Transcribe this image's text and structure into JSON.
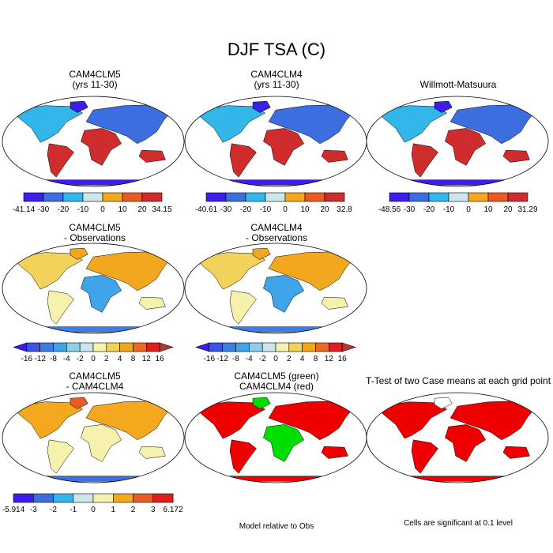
{
  "main_title": "DJF TSA (C)",
  "panels": [
    {
      "title_line1": "CAM4CLM5",
      "title_line2": "(yrs 11-30)",
      "kind": "temperature"
    },
    {
      "title_line1": "CAM4CLM4",
      "title_line2": "(yrs 11-30)",
      "kind": "temperature"
    },
    {
      "title_line1": "Willmott-Matsuura",
      "title_line2": "",
      "kind": "temperature"
    },
    {
      "title_line1": "CAM4CLM5",
      "title_line2": "- Observations",
      "kind": "difference"
    },
    {
      "title_line1": "CAM4CLM4",
      "title_line2": "- Observations",
      "kind": "difference"
    },
    {
      "title_line1": "CAM4CLM5",
      "title_line2": "- CAM4CLM4",
      "kind": "difference"
    },
    {
      "title_line1": "CAM4CLM5 (green)",
      "title_line2": "CAM4CLM4 (red)",
      "kind": "comparison"
    },
    {
      "title_line1": "T-Test of two Case means at each grid point",
      "title_line2": "",
      "kind": "significance"
    }
  ],
  "notes": {
    "model_relative": "Model relative to Obs",
    "significance": "Cells are significant at 0.1 level"
  },
  "chart_data": [
    {
      "type": "heatmap",
      "title": "CAM4CLM5 (yrs 11-30)",
      "colorbar": {
        "labels": [
          "-41.14",
          "-30",
          "-20",
          "-10",
          "0",
          "10",
          "20",
          "34.15"
        ],
        "min": -41.14,
        "max": 34.15,
        "colors": [
          "#3b1ee8",
          "#3d6ee0",
          "#33b6ea",
          "#cde6ee",
          "#f4a81e",
          "#eb5a24",
          "#cf2d2d"
        ]
      }
    },
    {
      "type": "heatmap",
      "title": "CAM4CLM4 (yrs 11-30)",
      "colorbar": {
        "labels": [
          "-40.61",
          "-30",
          "-20",
          "-10",
          "0",
          "10",
          "20",
          "32.8"
        ],
        "min": -40.61,
        "max": 32.8,
        "colors": [
          "#3b1ee8",
          "#3d6ee0",
          "#33b6ea",
          "#cde6ee",
          "#f4a81e",
          "#eb5a24",
          "#cf2d2d"
        ]
      }
    },
    {
      "type": "heatmap",
      "title": "Willmott-Matsuura",
      "colorbar": {
        "labels": [
          "-48.56",
          "-30",
          "-20",
          "-10",
          "0",
          "10",
          "20",
          "31.29"
        ],
        "min": -48.56,
        "max": 31.29,
        "colors": [
          "#3b1ee8",
          "#3d6ee0",
          "#33b6ea",
          "#cde6ee",
          "#f4a81e",
          "#eb5a24",
          "#cf2d2d"
        ]
      }
    },
    {
      "type": "heatmap",
      "title": "CAM4CLM5 - Observations",
      "colorbar": {
        "labels": [
          "-16",
          "-12",
          "-8",
          "-4",
          "-2",
          "0",
          "2",
          "4",
          "8",
          "12",
          "16"
        ],
        "colors": [
          "#3b1ee8",
          "#3d52e6",
          "#3d7ee0",
          "#3fa4ea",
          "#8ed0ec",
          "#cde6ee",
          "#f6f2ad",
          "#f2d25a",
          "#f2a81e",
          "#ec6a24",
          "#e01e1e",
          "#b83535"
        ]
      }
    },
    {
      "type": "heatmap",
      "title": "CAM4CLM4 - Observations",
      "colorbar": {
        "labels": [
          "-16",
          "-12",
          "-8",
          "-4",
          "-2",
          "0",
          "2",
          "4",
          "8",
          "12",
          "16"
        ],
        "colors": [
          "#3b1ee8",
          "#3d52e6",
          "#3d7ee0",
          "#3fa4ea",
          "#8ed0ec",
          "#cde6ee",
          "#f6f2ad",
          "#f2d25a",
          "#f2a81e",
          "#ec6a24",
          "#e01e1e",
          "#b83535"
        ]
      }
    },
    {
      "type": "heatmap",
      "title": "CAM4CLM5 - CAM4CLM4",
      "colorbar": {
        "labels": [
          "-5.914",
          "-3",
          "-2",
          "-1",
          "0",
          "1",
          "2",
          "3",
          "6.172"
        ],
        "min": -5.914,
        "max": 6.172,
        "colors": [
          "#3b1ee8",
          "#3d6ee0",
          "#33b6ea",
          "#cde6ee",
          "#f6f2ad",
          "#f4a81e",
          "#eb5a24",
          "#e01e1e"
        ]
      }
    },
    {
      "type": "heatmap",
      "title": "CAM4CLM5 (green) CAM4CLM4 (red)",
      "legend": [
        "CAM4CLM5 (green)",
        "CAM4CLM4 (red)"
      ],
      "colors": [
        "#00dd00",
        "#ee0000"
      ]
    },
    {
      "type": "heatmap",
      "title": "T-Test of two Case means at each grid point",
      "colors": [
        "#ee0000"
      ]
    }
  ]
}
